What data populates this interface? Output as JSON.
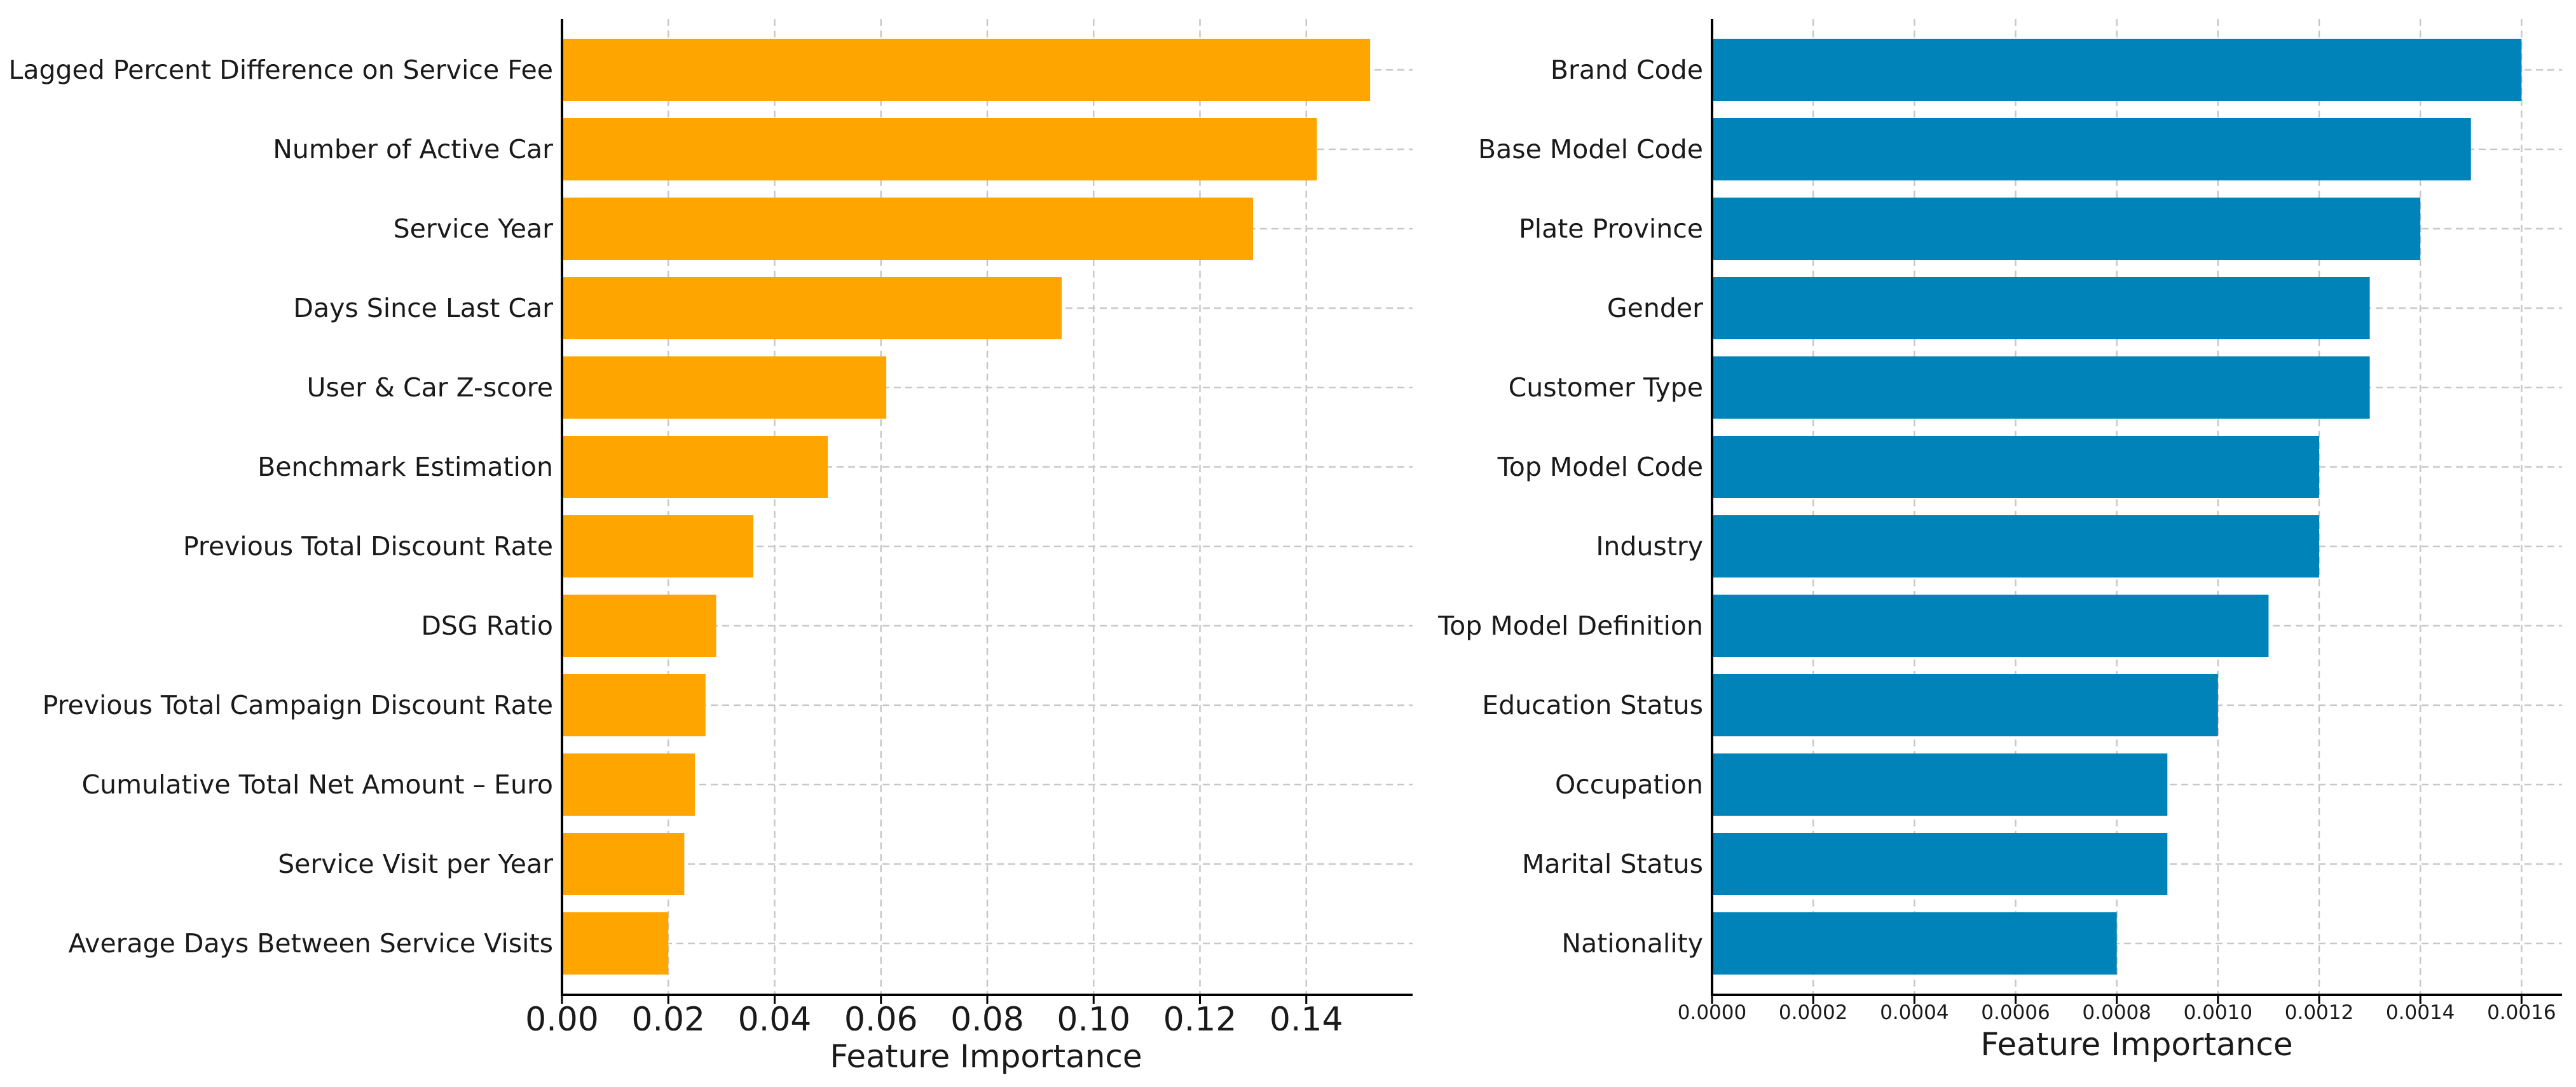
{
  "chart_data": [
    {
      "type": "bar",
      "orientation": "horizontal",
      "title": "",
      "xlabel": "Feature Importance",
      "ylabel": "",
      "grid": true,
      "color": "#FFA500",
      "xlim": [
        0,
        0.16
      ],
      "ticks": [
        0,
        0.02,
        0.04,
        0.06,
        0.08,
        0.1,
        0.12,
        0.14
      ],
      "tick_labels": [
        "0.00",
        "0.02",
        "0.04",
        "0.06",
        "0.08",
        "0.10",
        "0.12",
        "0.14"
      ],
      "categories": [
        "Lagged Percent Difference on Service Fee",
        "Number of Active Car",
        "Service Year",
        "Days Since Last Car",
        "User & Car Z-score",
        "Benchmark Estimation",
        "Previous Total Discount Rate",
        "DSG Ratio",
        "Previous Total Campaign Discount Rate",
        "Cumulative Total Net Amount – Euro",
        "Service Visit per Year",
        "Average Days Between Service Visits"
      ],
      "values": [
        0.152,
        0.142,
        0.13,
        0.094,
        0.061,
        0.05,
        0.036,
        0.029,
        0.027,
        0.025,
        0.023,
        0.02
      ]
    },
    {
      "type": "bar",
      "orientation": "horizontal",
      "title": "",
      "xlabel": "Feature Importance",
      "ylabel": "",
      "grid": true,
      "color": "#0083B8",
      "xlim": [
        0,
        0.00168
      ],
      "ticks": [
        0,
        0.0002,
        0.0004,
        0.0006,
        0.0008,
        0.001,
        0.0012,
        0.0014,
        0.0016
      ],
      "tick_labels": [
        "0.0000",
        "0.0002",
        "0.0004",
        "0.0006",
        "0.0008",
        "0.0010",
        "0.0012",
        "0.0014",
        "0.0016"
      ],
      "categories": [
        "Brand Code",
        "Base Model Code",
        "Plate Province",
        "Gender",
        "Customer Type",
        "Top Model Code",
        "Industry",
        "Top Model Definition",
        "Education Status",
        "Occupation",
        "Marital Status",
        "Nationality"
      ],
      "values": [
        0.0016,
        0.0015,
        0.0014,
        0.0013,
        0.0013,
        0.0012,
        0.0012,
        0.0011,
        0.001,
        0.0009,
        0.0009,
        0.0008
      ]
    }
  ]
}
